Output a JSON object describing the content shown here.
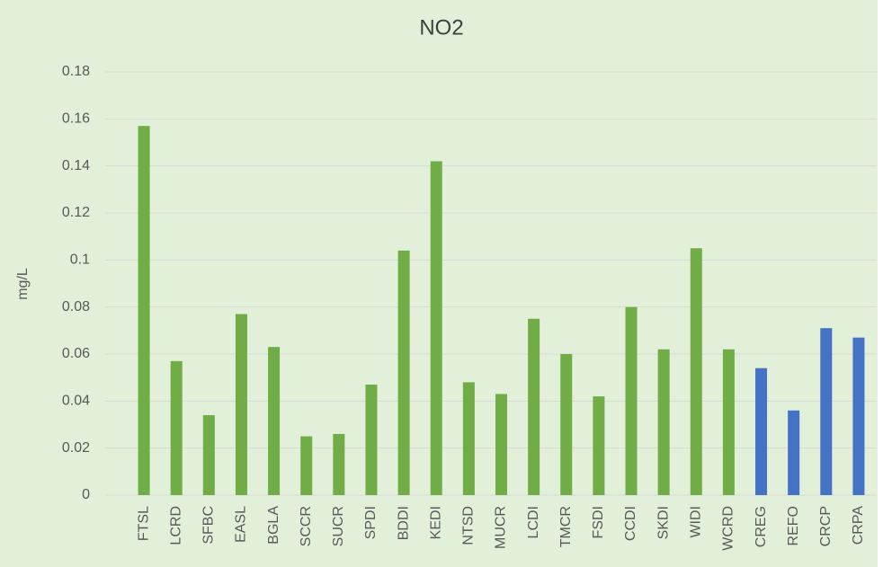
{
  "chart_data": {
    "type": "bar",
    "title": "NO2",
    "y_label": "mg/L",
    "categories": [
      "FTSL",
      "LCRD",
      "SFBC",
      "EASL",
      "BGLA",
      "SCCR",
      "SUCR",
      "SPDI",
      "BDDI",
      "KEDI",
      "NTSD",
      "MUCR",
      "LCDI",
      "TMCR",
      "FSDI",
      "CCDI",
      "SKDI",
      "WIDI",
      "WCRD",
      "CREG",
      "REFO",
      "CRCP",
      "CRPA"
    ],
    "values": [
      0.157,
      0.057,
      0.034,
      0.077,
      0.063,
      0.025,
      0.026,
      0.047,
      0.104,
      0.142,
      0.048,
      0.043,
      0.075,
      0.06,
      0.042,
      0.08,
      0.062,
      0.105,
      0.062,
      0.054,
      0.036,
      0.071,
      0.067
    ],
    "colors": [
      "#70ad47",
      "#70ad47",
      "#70ad47",
      "#70ad47",
      "#70ad47",
      "#70ad47",
      "#70ad47",
      "#70ad47",
      "#70ad47",
      "#70ad47",
      "#70ad47",
      "#70ad47",
      "#70ad47",
      "#70ad47",
      "#70ad47",
      "#70ad47",
      "#70ad47",
      "#70ad47",
      "#70ad47",
      "#4472c4",
      "#4472c4",
      "#4472c4",
      "#4472c4"
    ],
    "ylim": [
      0,
      0.18
    ],
    "yticks": [
      0,
      0.02,
      0.04,
      0.06,
      0.08,
      0.1,
      0.12,
      0.14,
      0.16,
      0.18
    ],
    "grid": true
  }
}
